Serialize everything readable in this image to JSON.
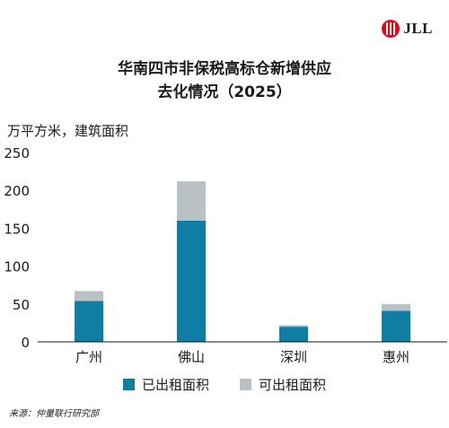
{
  "brand": {
    "name": "JLL",
    "color": "#e30613"
  },
  "title_line1": "华南四市非保税高标仓新增供应",
  "title_line2": "去化情况（2025）",
  "unit_label": "万平方米，建筑面积",
  "source": "来源：仲量联行研究部",
  "chart_data": {
    "type": "bar",
    "stacked": true,
    "categories": [
      "广州",
      "佛山",
      "深圳",
      "惠州"
    ],
    "series": [
      {
        "name": "已出租面积",
        "color": "#0e7ea3",
        "values": [
          54,
          160,
          20,
          41
        ]
      },
      {
        "name": "可出租面积",
        "color": "#b9c1c4",
        "values": [
          13,
          52,
          2,
          9
        ]
      }
    ],
    "ylim": [
      0,
      250
    ],
    "yticks": [
      "0",
      "50",
      "100",
      "150",
      "200",
      "250"
    ],
    "grid": false,
    "legend_position": "bottom"
  }
}
